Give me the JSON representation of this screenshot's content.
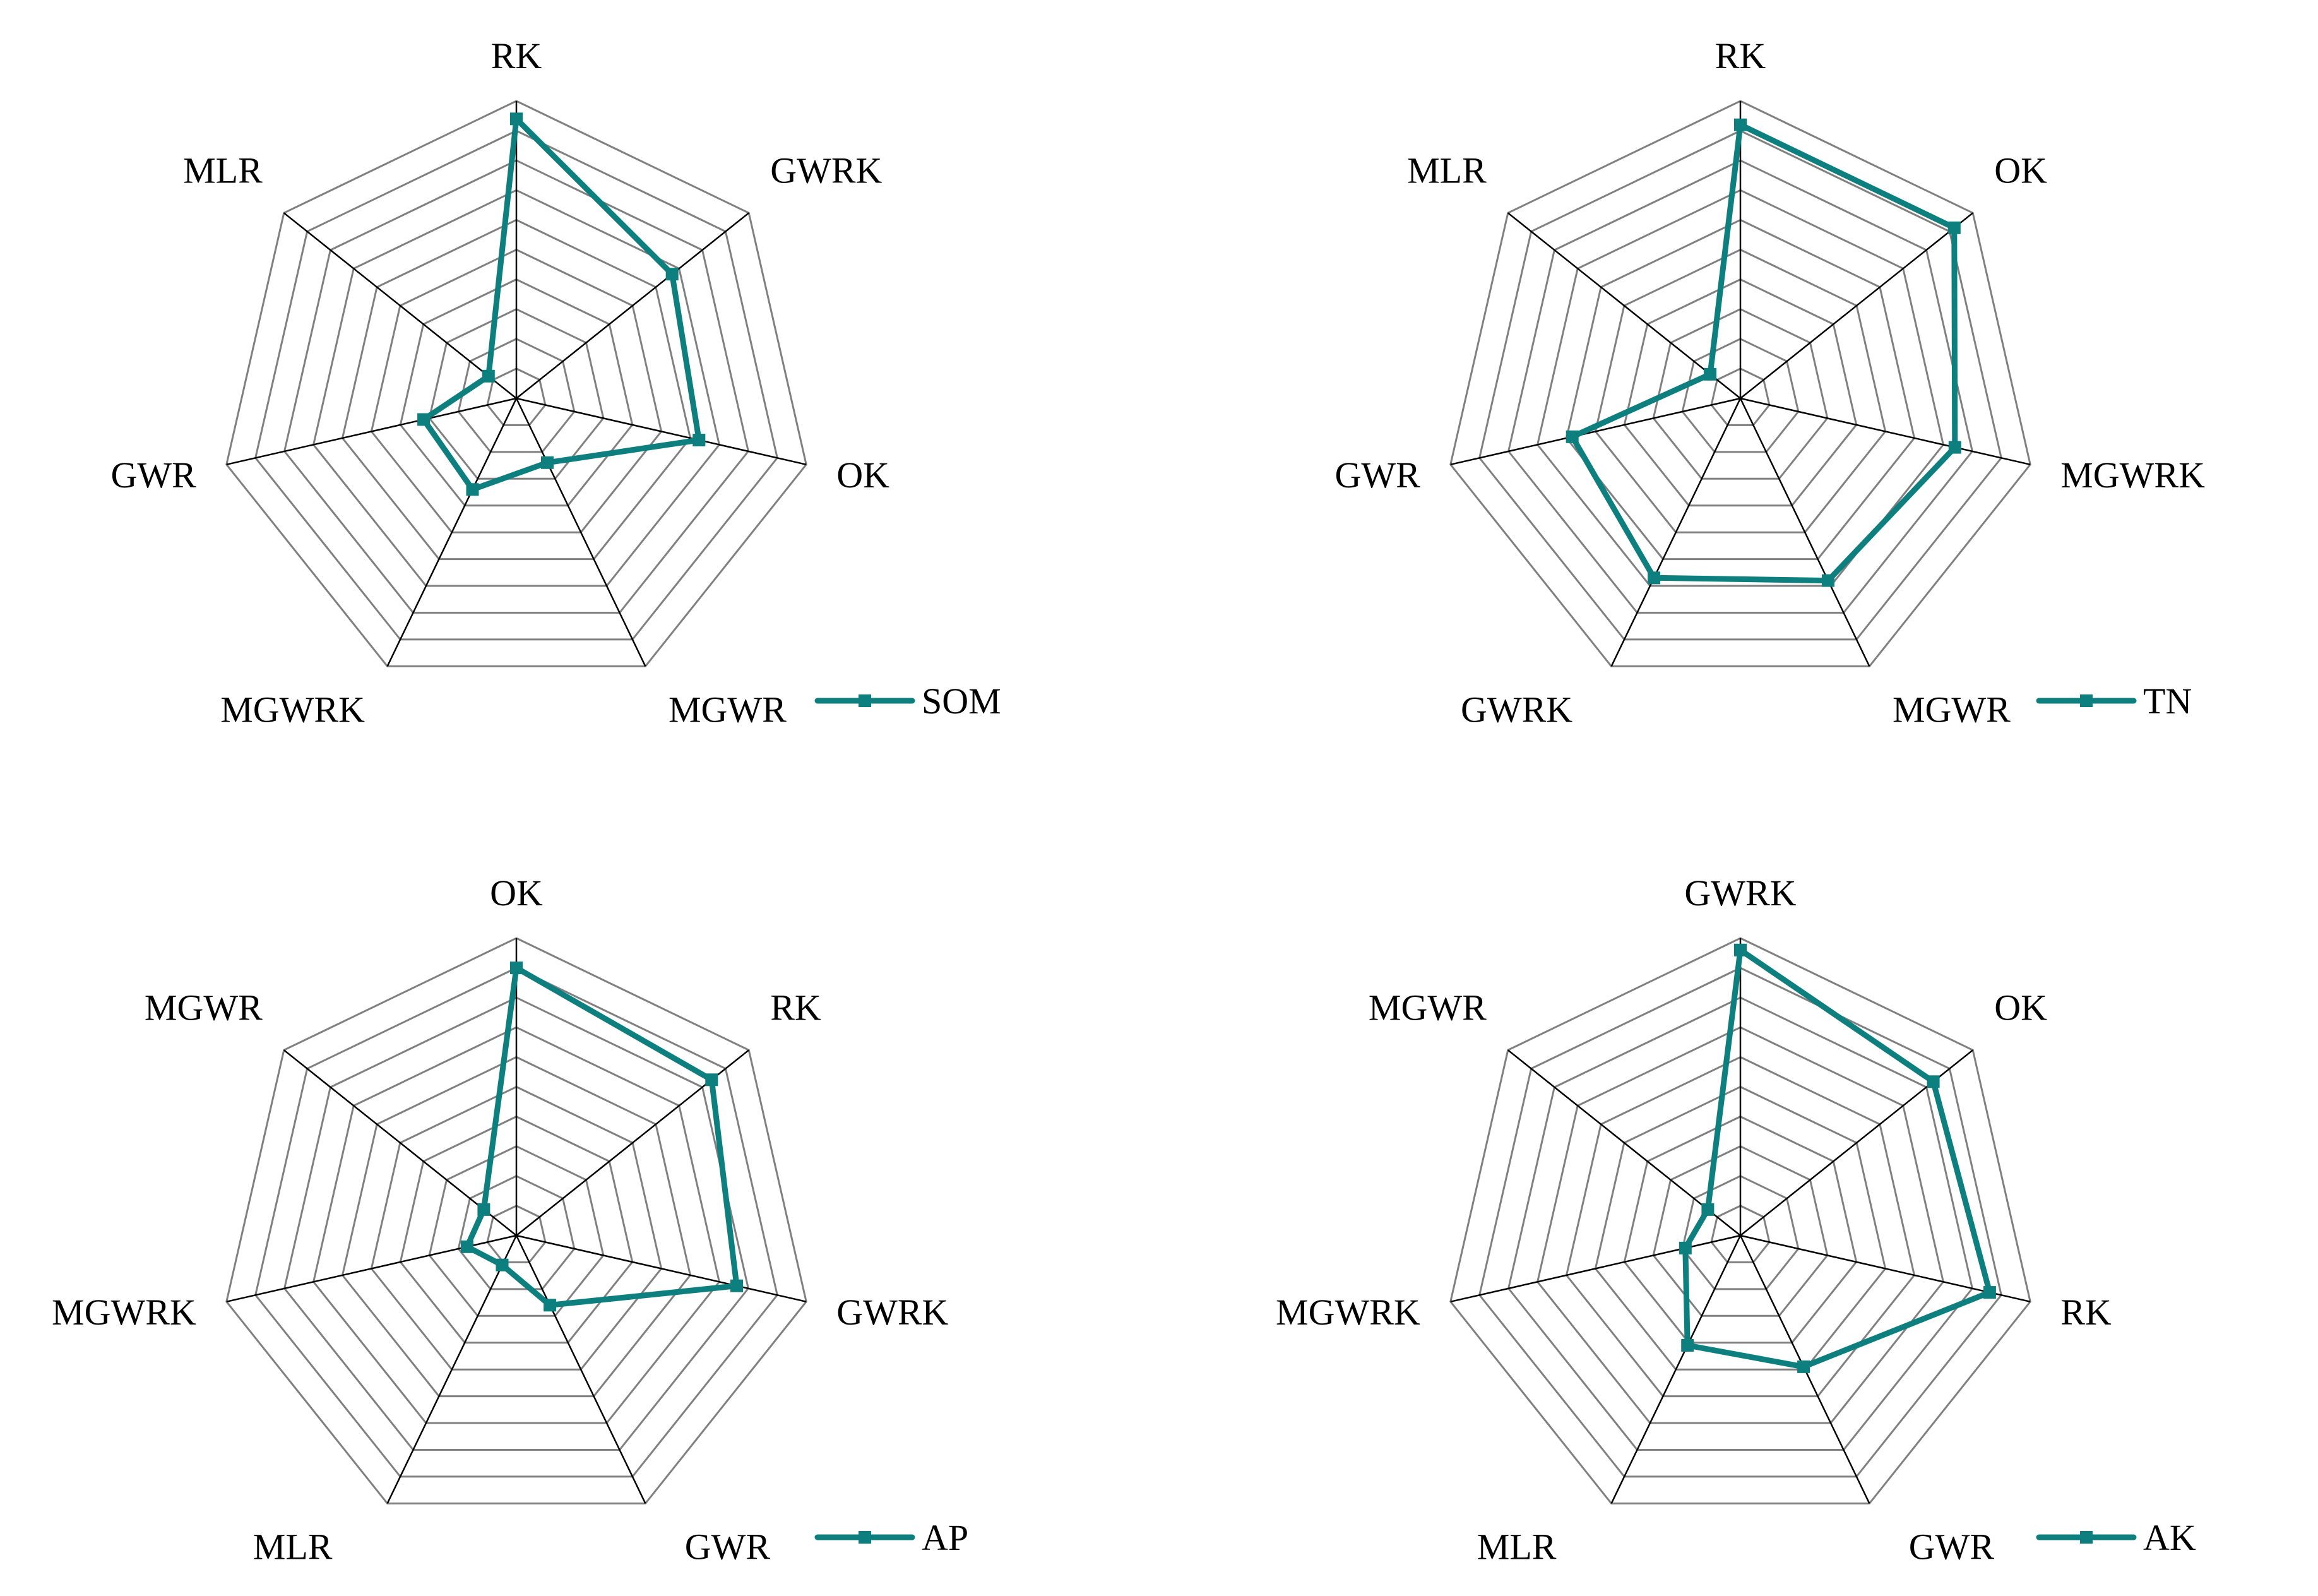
{
  "colors": {
    "series": "#0e7f7f",
    "grid": "#808080",
    "axis": "#000000"
  },
  "chart_data": [
    {
      "type": "radar",
      "axes": [
        "RK",
        "GWRK",
        "OK",
        "MGWR",
        "MGWRK",
        "GWR",
        "MLR"
      ],
      "range": [
        0,
        10
      ],
      "rings": 10,
      "legend": "bottom-right",
      "series": [
        {
          "name": "SOM",
          "values": [
            9.4,
            6.7,
            6.3,
            2.4,
            3.4,
            3.2,
            1.2
          ]
        }
      ]
    },
    {
      "type": "radar",
      "axes": [
        "RK",
        "OK",
        "MGWRK",
        "MGWR",
        "GWRK",
        "GWR",
        "MLR"
      ],
      "range": [
        0,
        10
      ],
      "rings": 10,
      "legend": "bottom-right",
      "series": [
        {
          "name": "TN",
          "values": [
            9.2,
            9.2,
            7.4,
            6.8,
            6.7,
            5.8,
            1.3
          ]
        }
      ]
    },
    {
      "type": "radar",
      "axes": [
        "OK",
        "RK",
        "GWRK",
        "GWR",
        "MLR",
        "MGWRK",
        "MGWR"
      ],
      "range": [
        0,
        10
      ],
      "rings": 10,
      "legend": "bottom-right",
      "series": [
        {
          "name": "AP",
          "values": [
            9.0,
            8.4,
            7.6,
            2.6,
            1.1,
            1.7,
            1.4
          ]
        }
      ]
    },
    {
      "type": "radar",
      "axes": [
        "GWRK",
        "OK",
        "RK",
        "GWR",
        "MLR",
        "MGWRK",
        "MGWR"
      ],
      "range": [
        0,
        10
      ],
      "rings": 10,
      "legend": "bottom-right",
      "series": [
        {
          "name": "AK",
          "values": [
            9.6,
            8.3,
            8.6,
            4.9,
            4.1,
            1.9,
            1.4
          ]
        }
      ]
    }
  ]
}
